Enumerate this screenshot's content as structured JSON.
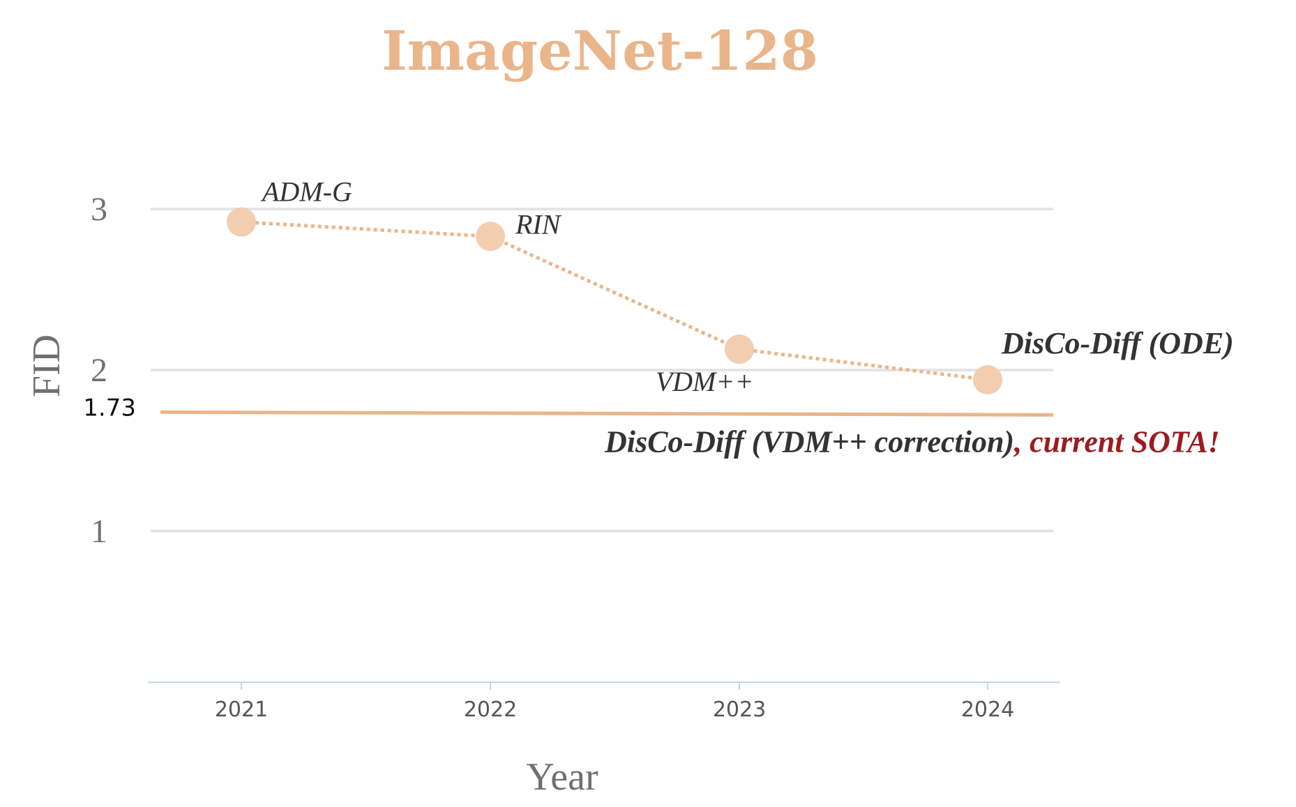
{
  "chart_data": {
    "type": "line",
    "title": "ImageNet-128",
    "xlabel": "Year",
    "ylabel": "FID",
    "x": [
      2021,
      2022,
      2023,
      2024
    ],
    "xticks": [
      "2021",
      "2022",
      "2023",
      "2024"
    ],
    "yticks": [
      1,
      2,
      3
    ],
    "ylim": [
      0.1,
      3.2
    ],
    "grid": true,
    "series": [
      {
        "values": [
          2.92,
          2.83,
          2.13,
          1.94
        ],
        "labels": [
          "ADM-G",
          "RIN",
          "VDM++",
          "DisCo-Diff (ODE)"
        ]
      }
    ],
    "reference_line": {
      "value": 1.73,
      "value_label": "1.73",
      "label": "DisCo-Diff (VDM++ correction)",
      "label_suffix": ", current SOTA!"
    }
  },
  "colors": {
    "title": "#eab58a",
    "line": "#eab58a",
    "marker": "#f2cdb0",
    "reference_line": "#eab58a",
    "gridline": "#e4e4e4",
    "axis": "#c9d3ec",
    "sota_suffix": "#9b1b1f"
  }
}
